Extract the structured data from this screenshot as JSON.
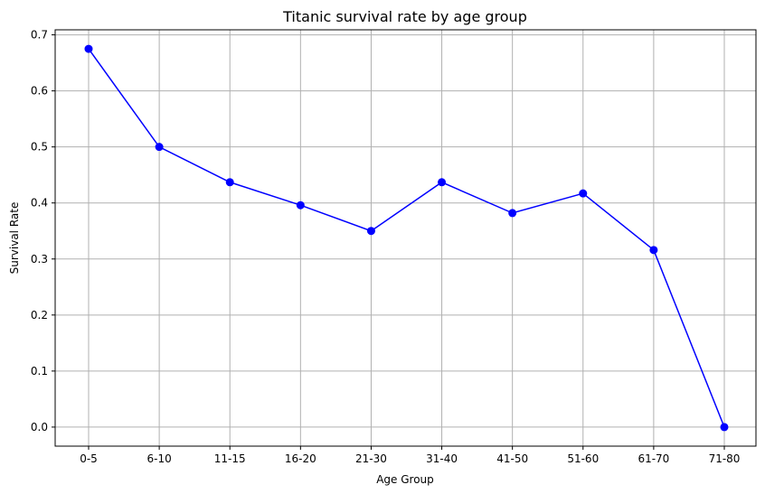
{
  "chart_data": {
    "type": "line",
    "title": "Titanic survival rate by age group",
    "xlabel": "Age Group",
    "ylabel": "Survival Rate",
    "categories": [
      "0-5",
      "6-10",
      "11-15",
      "16-20",
      "21-30",
      "31-40",
      "41-50",
      "51-60",
      "61-70",
      "71-80"
    ],
    "series": [
      {
        "values": [
          0.675,
          0.5,
          0.437,
          0.396,
          0.35,
          0.437,
          0.382,
          0.417,
          0.316,
          0.0
        ],
        "color": "#0000ff",
        "marker": "circle"
      }
    ],
    "yticks": [
      0.0,
      0.1,
      0.2,
      0.3,
      0.4,
      0.5,
      0.6,
      0.7
    ],
    "ytick_labels": [
      "0.0",
      "0.1",
      "0.2",
      "0.3",
      "0.4",
      "0.5",
      "0.6",
      "0.7"
    ],
    "ylim": [
      -0.034,
      0.709
    ],
    "grid": true,
    "grid_color": "#b0b0b0"
  }
}
